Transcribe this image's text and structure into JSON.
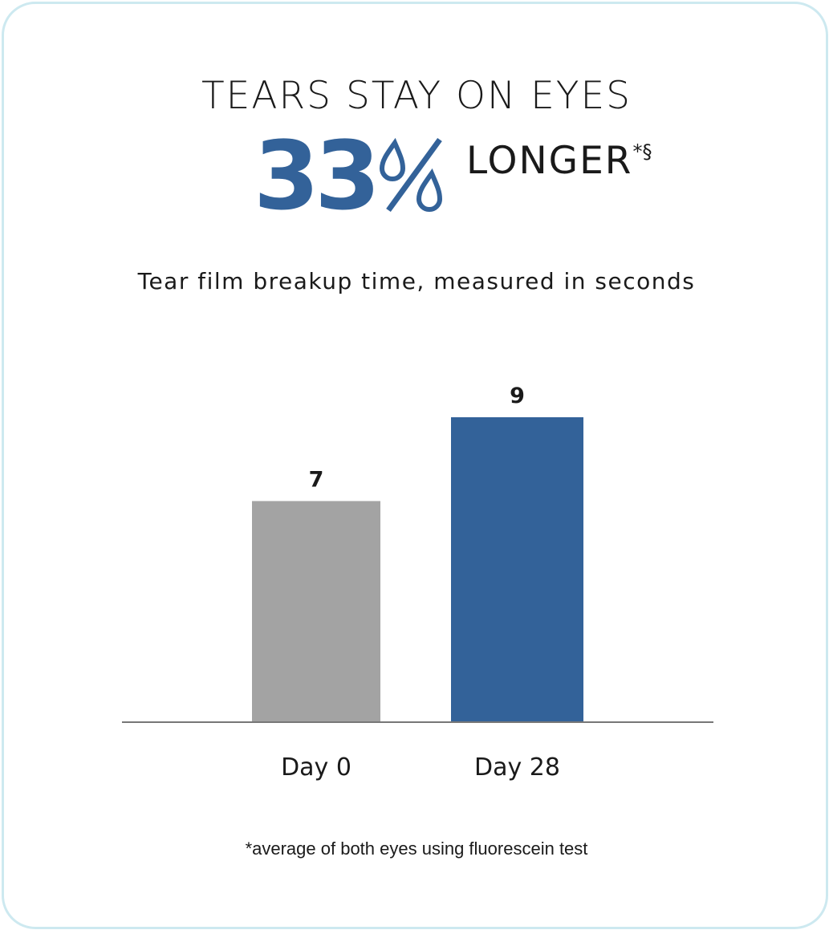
{
  "header": {
    "line1": "TEARS STAY ON EYES",
    "percent_value": "33",
    "percent_symbol_icon": "water-drop-percent-icon",
    "line2": "LONGER",
    "line2_marks": "*§"
  },
  "colors": {
    "accent": "#336299",
    "bar_day0": "#a3a3a3",
    "bar_day28": "#336299",
    "border": "#cde9f0"
  },
  "chart_data": {
    "type": "bar",
    "title": "Tear film breakup time, measured in seconds",
    "categories": [
      "Day 0",
      "Day 28"
    ],
    "values": [
      7,
      9
    ],
    "data_labels": [
      "7",
      "9"
    ],
    "xlabel": "",
    "ylabel": "",
    "ylim": [
      0,
      9
    ],
    "grid": false
  },
  "footnote": "*average of both eyes using fluorescein test"
}
